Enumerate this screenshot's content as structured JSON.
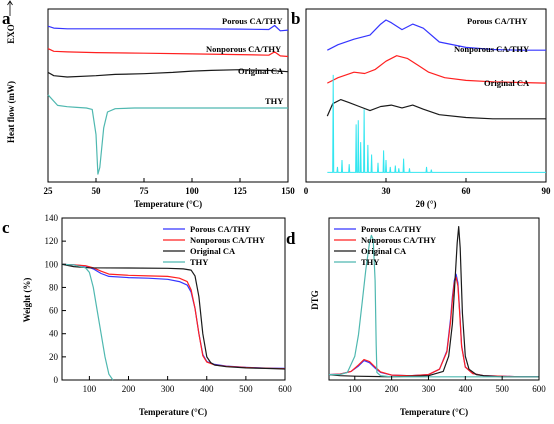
{
  "colors": {
    "blue": "#3535ff",
    "red": "#ff2020",
    "black": "#1a1a1a",
    "cyan": "#4fb8b0",
    "cyan_xrd": "#33e6f0"
  },
  "chart_data": [
    {
      "panel": "a",
      "type": "line",
      "xlabel": "Temperature (°C)",
      "ylabel": "Heat flow (mW)",
      "exo_label": "EXO",
      "xlim": [
        25,
        150
      ],
      "xticks": [
        "25",
        "50",
        "75",
        "100",
        "125",
        "150"
      ],
      "series": [
        {
          "name": "Porous CA/THY",
          "color": "blue",
          "x": [
            25,
            28,
            35,
            50,
            75,
            100,
            125,
            140,
            143,
            146,
            150
          ],
          "y": [
            9.2,
            9.05,
            9.0,
            9.0,
            9.0,
            9.0,
            8.98,
            8.95,
            9.25,
            8.85,
            8.9
          ]
        },
        {
          "name": "Nonporous CA/THY",
          "color": "red",
          "x": [
            25,
            28,
            35,
            50,
            75,
            100,
            125,
            140,
            143,
            146,
            150
          ],
          "y": [
            7.5,
            7.3,
            7.25,
            7.2,
            7.15,
            7.1,
            7.05,
            7.0,
            7.25,
            6.95,
            6.9
          ]
        },
        {
          "name": "Original CA",
          "color": "black",
          "x": [
            25,
            28,
            35,
            50,
            60,
            75,
            90,
            100,
            110,
            125,
            140,
            150
          ],
          "y": [
            5.7,
            5.45,
            5.35,
            5.45,
            5.55,
            5.6,
            5.7,
            5.8,
            5.85,
            5.9,
            5.85,
            5.75
          ]
        },
        {
          "name": "THY",
          "color": "cyan",
          "x": [
            25,
            30,
            35,
            40,
            45,
            48,
            50,
            51,
            52,
            54,
            56,
            60,
            70,
            80,
            100,
            125,
            150
          ],
          "y": [
            4.0,
            3.2,
            3.1,
            3.05,
            3.0,
            2.9,
            1.0,
            -2.0,
            -1.5,
            1.5,
            2.7,
            2.95,
            3.0,
            3.0,
            3.0,
            3.0,
            3.0
          ]
        }
      ]
    },
    {
      "panel": "b",
      "type": "line",
      "xlabel": "2θ (°)",
      "xlim": [
        0,
        90
      ],
      "xticks": [
        "0",
        "30",
        "60",
        "90"
      ],
      "series": [
        {
          "name": "Porous CA/THY",
          "color": "blue",
          "x": [
            8,
            12,
            18,
            24,
            28,
            30,
            32,
            36,
            40,
            44,
            50,
            60,
            70,
            80,
            90
          ],
          "y": [
            9.0,
            9.4,
            9.8,
            10.1,
            10.9,
            11.2,
            11.0,
            10.5,
            10.9,
            10.6,
            9.6,
            9.2,
            9.05,
            9.0,
            9.0
          ]
        },
        {
          "name": "Nonporous CA/THY",
          "color": "red",
          "x": [
            8,
            12,
            18,
            22,
            26,
            30,
            34,
            38,
            42,
            46,
            52,
            60,
            70,
            80,
            90
          ],
          "y": [
            6.6,
            7.0,
            7.4,
            7.3,
            7.6,
            8.2,
            8.6,
            8.4,
            7.9,
            7.4,
            7.0,
            6.8,
            6.7,
            6.65,
            6.6
          ]
        },
        {
          "name": "Original CA",
          "color": "black",
          "x": [
            8,
            10,
            13,
            16,
            20,
            24,
            28,
            32,
            36,
            40,
            44,
            50,
            60,
            70,
            80,
            90
          ],
          "y": [
            4.2,
            5.1,
            5.4,
            5.2,
            4.9,
            4.6,
            4.9,
            5.0,
            4.8,
            5.0,
            4.7,
            4.3,
            4.1,
            4.0,
            4.0,
            4.0
          ]
        },
        {
          "name": "THY",
          "color": "cyan_xrd",
          "sticks": [
            [
              10.2,
              7.2
            ],
            [
              11.8,
              0.5
            ],
            [
              13.5,
              1.0
            ],
            [
              16.2,
              0.7
            ],
            [
              18.8,
              3.6
            ],
            [
              19.6,
              3.9
            ],
            [
              20.5,
              2.3
            ],
            [
              21.8,
              4.7
            ],
            [
              23.2,
              2.1
            ],
            [
              24.6,
              1.4
            ],
            [
              27.0,
              0.8
            ],
            [
              29.1,
              1.7
            ],
            [
              30.0,
              1.0
            ],
            [
              31.6,
              0.5
            ],
            [
              33.5,
              0.6
            ],
            [
              34.8,
              0.4
            ],
            [
              36.6,
              1.1
            ],
            [
              38.8,
              0.4
            ],
            [
              45.2,
              0.5
            ],
            [
              47.0,
              0.3
            ]
          ],
          "baseline": 0.1
        }
      ]
    },
    {
      "panel": "c",
      "type": "line",
      "xlabel": "Temperature (°C)",
      "ylabel": "Weight (%)",
      "xlim": [
        30,
        600
      ],
      "ylim": [
        0,
        140
      ],
      "xticks": [
        "100",
        "200",
        "300",
        "400",
        "500",
        "600"
      ],
      "yticks": [
        "0",
        "20",
        "40",
        "60",
        "80",
        "100",
        "120",
        "140"
      ],
      "legend": "top-right",
      "series": [
        {
          "name": "Porous CA/THY",
          "color": "blue",
          "x": [
            30,
            60,
            90,
            110,
            130,
            150,
            200,
            250,
            300,
            330,
            350,
            360,
            370,
            380,
            390,
            400,
            420,
            450,
            500,
            550,
            600
          ],
          "y": [
            100,
            99.5,
            98.5,
            96,
            92,
            89.5,
            88.5,
            88,
            87,
            85,
            82,
            76,
            62,
            40,
            22,
            16,
            13.5,
            12,
            11,
            10.3,
            10
          ]
        },
        {
          "name": "Nonporous CA/THY",
          "color": "red",
          "x": [
            30,
            60,
            90,
            110,
            130,
            150,
            200,
            250,
            300,
            330,
            350,
            360,
            370,
            380,
            390,
            400,
            420,
            450,
            500,
            550,
            600
          ],
          "y": [
            100,
            99.5,
            98.8,
            97,
            94,
            91.5,
            90.5,
            90,
            89.5,
            88,
            85,
            78,
            62,
            40,
            21,
            15.5,
            13,
            11.8,
            10.8,
            10.2,
            9.8
          ]
        },
        {
          "name": "Original CA",
          "color": "black",
          "x": [
            30,
            60,
            100,
            200,
            300,
            340,
            360,
            370,
            380,
            390,
            400,
            410,
            420,
            450,
            500,
            550,
            600
          ],
          "y": [
            100,
            98,
            97,
            96.8,
            96.5,
            96,
            95,
            90,
            72,
            40,
            20,
            15,
            13,
            11.5,
            10.5,
            10,
            9.5
          ]
        },
        {
          "name": "THY",
          "color": "cyan",
          "x": [
            30,
            60,
            90,
            100,
            110,
            120,
            130,
            140,
            150,
            160
          ],
          "y": [
            100,
            99.5,
            97,
            93,
            80,
            60,
            40,
            20,
            5,
            0
          ]
        }
      ]
    },
    {
      "panel": "d",
      "type": "line",
      "xlabel": "Temperature (°C)",
      "ylabel": "DTG",
      "xlim": [
        30,
        600
      ],
      "xticks": [
        "100",
        "200",
        "300",
        "400",
        "500",
        "600"
      ],
      "legend": "top-left",
      "series": [
        {
          "name": "Porous CA/THY",
          "color": "blue",
          "x": [
            30,
            60,
            90,
            110,
            125,
            140,
            155,
            170,
            200,
            250,
            300,
            330,
            350,
            360,
            365,
            370,
            375,
            380,
            385,
            390,
            400,
            420,
            450,
            500,
            550,
            600
          ],
          "y": [
            0.3,
            0.35,
            0.6,
            1.1,
            1.6,
            1.4,
            0.9,
            0.5,
            0.25,
            0.2,
            0.3,
            0.8,
            2.5,
            5.5,
            7.5,
            9.0,
            9.6,
            8.8,
            6.0,
            3.0,
            1.0,
            0.4,
            0.2,
            0.15,
            0.1,
            0.1
          ]
        },
        {
          "name": "Nonporous CA/THY",
          "color": "red",
          "x": [
            30,
            60,
            90,
            110,
            125,
            140,
            155,
            170,
            200,
            250,
            300,
            330,
            350,
            360,
            365,
            370,
            375,
            380,
            385,
            390,
            400,
            420,
            450,
            500,
            550,
            600
          ],
          "y": [
            0.3,
            0.35,
            0.6,
            1.2,
            1.7,
            1.5,
            1.0,
            0.55,
            0.25,
            0.2,
            0.3,
            0.8,
            2.4,
            5.2,
            7.2,
            8.8,
            9.3,
            8.5,
            5.8,
            2.9,
            1.0,
            0.4,
            0.2,
            0.15,
            0.1,
            0.1
          ]
        },
        {
          "name": "Original CA",
          "color": "black",
          "x": [
            30,
            60,
            100,
            200,
            300,
            340,
            355,
            365,
            372,
            378,
            382,
            386,
            392,
            400,
            410,
            430,
            450,
            500,
            550,
            600
          ],
          "y": [
            0.3,
            0.2,
            0.15,
            0.1,
            0.2,
            0.6,
            2.0,
            5.0,
            9.0,
            12.5,
            14.0,
            12.0,
            6.0,
            2.0,
            0.8,
            0.3,
            0.2,
            0.1,
            0.1,
            0.1
          ]
        },
        {
          "name": "THY",
          "color": "cyan",
          "x": [
            30,
            60,
            80,
            100,
            110,
            120,
            130,
            140,
            145,
            150,
            155,
            158,
            160,
            170,
            200,
            300,
            400,
            500,
            600
          ],
          "y": [
            0.3,
            0.3,
            0.5,
            2.0,
            4.0,
            7.0,
            10.0,
            12.5,
            13.2,
            12.8,
            9.0,
            3.0,
            0.5,
            0.2,
            0.1,
            0.1,
            0.1,
            0.1,
            0.1
          ]
        }
      ]
    }
  ],
  "panel_labels": [
    "a",
    "b",
    "c",
    "d"
  ]
}
